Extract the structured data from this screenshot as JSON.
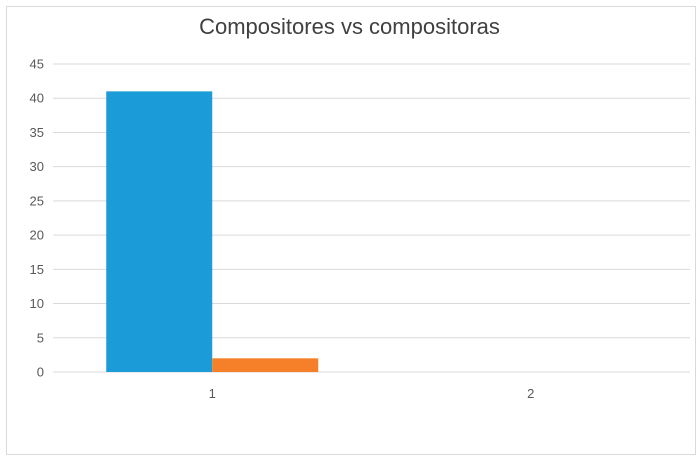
{
  "chart_data": {
    "type": "bar",
    "title": "Compositores vs compositoras",
    "xlabel": "",
    "ylabel": "",
    "categories": [
      "1",
      "2"
    ],
    "series": [
      {
        "values": [
          41,
          0
        ],
        "color": "#1b9bd7"
      },
      {
        "values": [
          2,
          0
        ],
        "color": "#f6802a"
      }
    ],
    "ylim": [
      0,
      45
    ],
    "yticks": [
      0,
      5,
      10,
      15,
      20,
      25,
      30,
      35,
      40,
      45
    ],
    "grid": true,
    "legend": "none"
  }
}
